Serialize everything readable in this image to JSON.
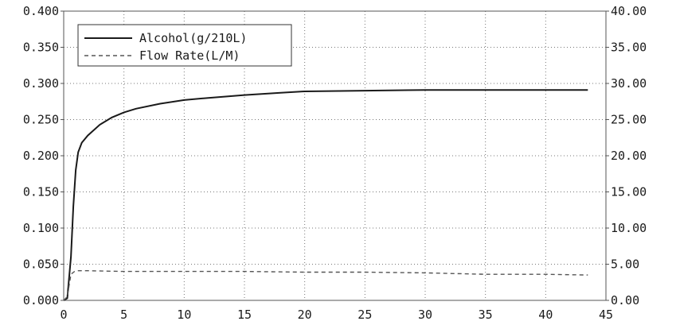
{
  "chart_data": {
    "type": "line",
    "title": "",
    "xlabel": "",
    "ylabel": "",
    "xlim": [
      0,
      45
    ],
    "ylim_left": [
      0,
      0.4
    ],
    "ylim_right": [
      0,
      40
    ],
    "x_ticks": [
      "0",
      "5",
      "10",
      "15",
      "20",
      "25",
      "30",
      "35",
      "40",
      "45"
    ],
    "y_left_ticks": [
      "0.000",
      "0.050",
      "0.100",
      "0.150",
      "0.200",
      "0.250",
      "0.300",
      "0.350",
      "0.400"
    ],
    "y_right_ticks": [
      "0.00",
      "5.00",
      "10.00",
      "15.00",
      "20.00",
      "25.00",
      "30.00",
      "35.00",
      "40.00"
    ],
    "grid": true,
    "legend_position": "top-left",
    "series": [
      {
        "name": "Alcohol(g/210L)",
        "axis": "left",
        "style": "solid",
        "x": [
          0,
          0.3,
          0.6,
          0.8,
          1.0,
          1.2,
          1.5,
          2,
          3,
          4,
          5,
          6,
          8,
          10,
          12,
          15,
          18,
          20,
          25,
          30,
          35,
          40,
          43.5
        ],
        "y": [
          0.0,
          0.003,
          0.06,
          0.13,
          0.18,
          0.205,
          0.218,
          0.228,
          0.243,
          0.253,
          0.26,
          0.265,
          0.272,
          0.277,
          0.28,
          0.284,
          0.287,
          0.289,
          0.29,
          0.291,
          0.291,
          0.291,
          0.291
        ]
      },
      {
        "name": "Flow Rate(L/M)",
        "axis": "right",
        "style": "dashed",
        "x": [
          0,
          0.3,
          0.6,
          0.9,
          1.2,
          2,
          5,
          10,
          15,
          20,
          25,
          30,
          35,
          40,
          43.5
        ],
        "y": [
          0.0,
          0.5,
          3.6,
          4.0,
          4.1,
          4.1,
          4.0,
          4.0,
          4.0,
          3.9,
          3.9,
          3.8,
          3.6,
          3.6,
          3.5
        ]
      }
    ]
  }
}
